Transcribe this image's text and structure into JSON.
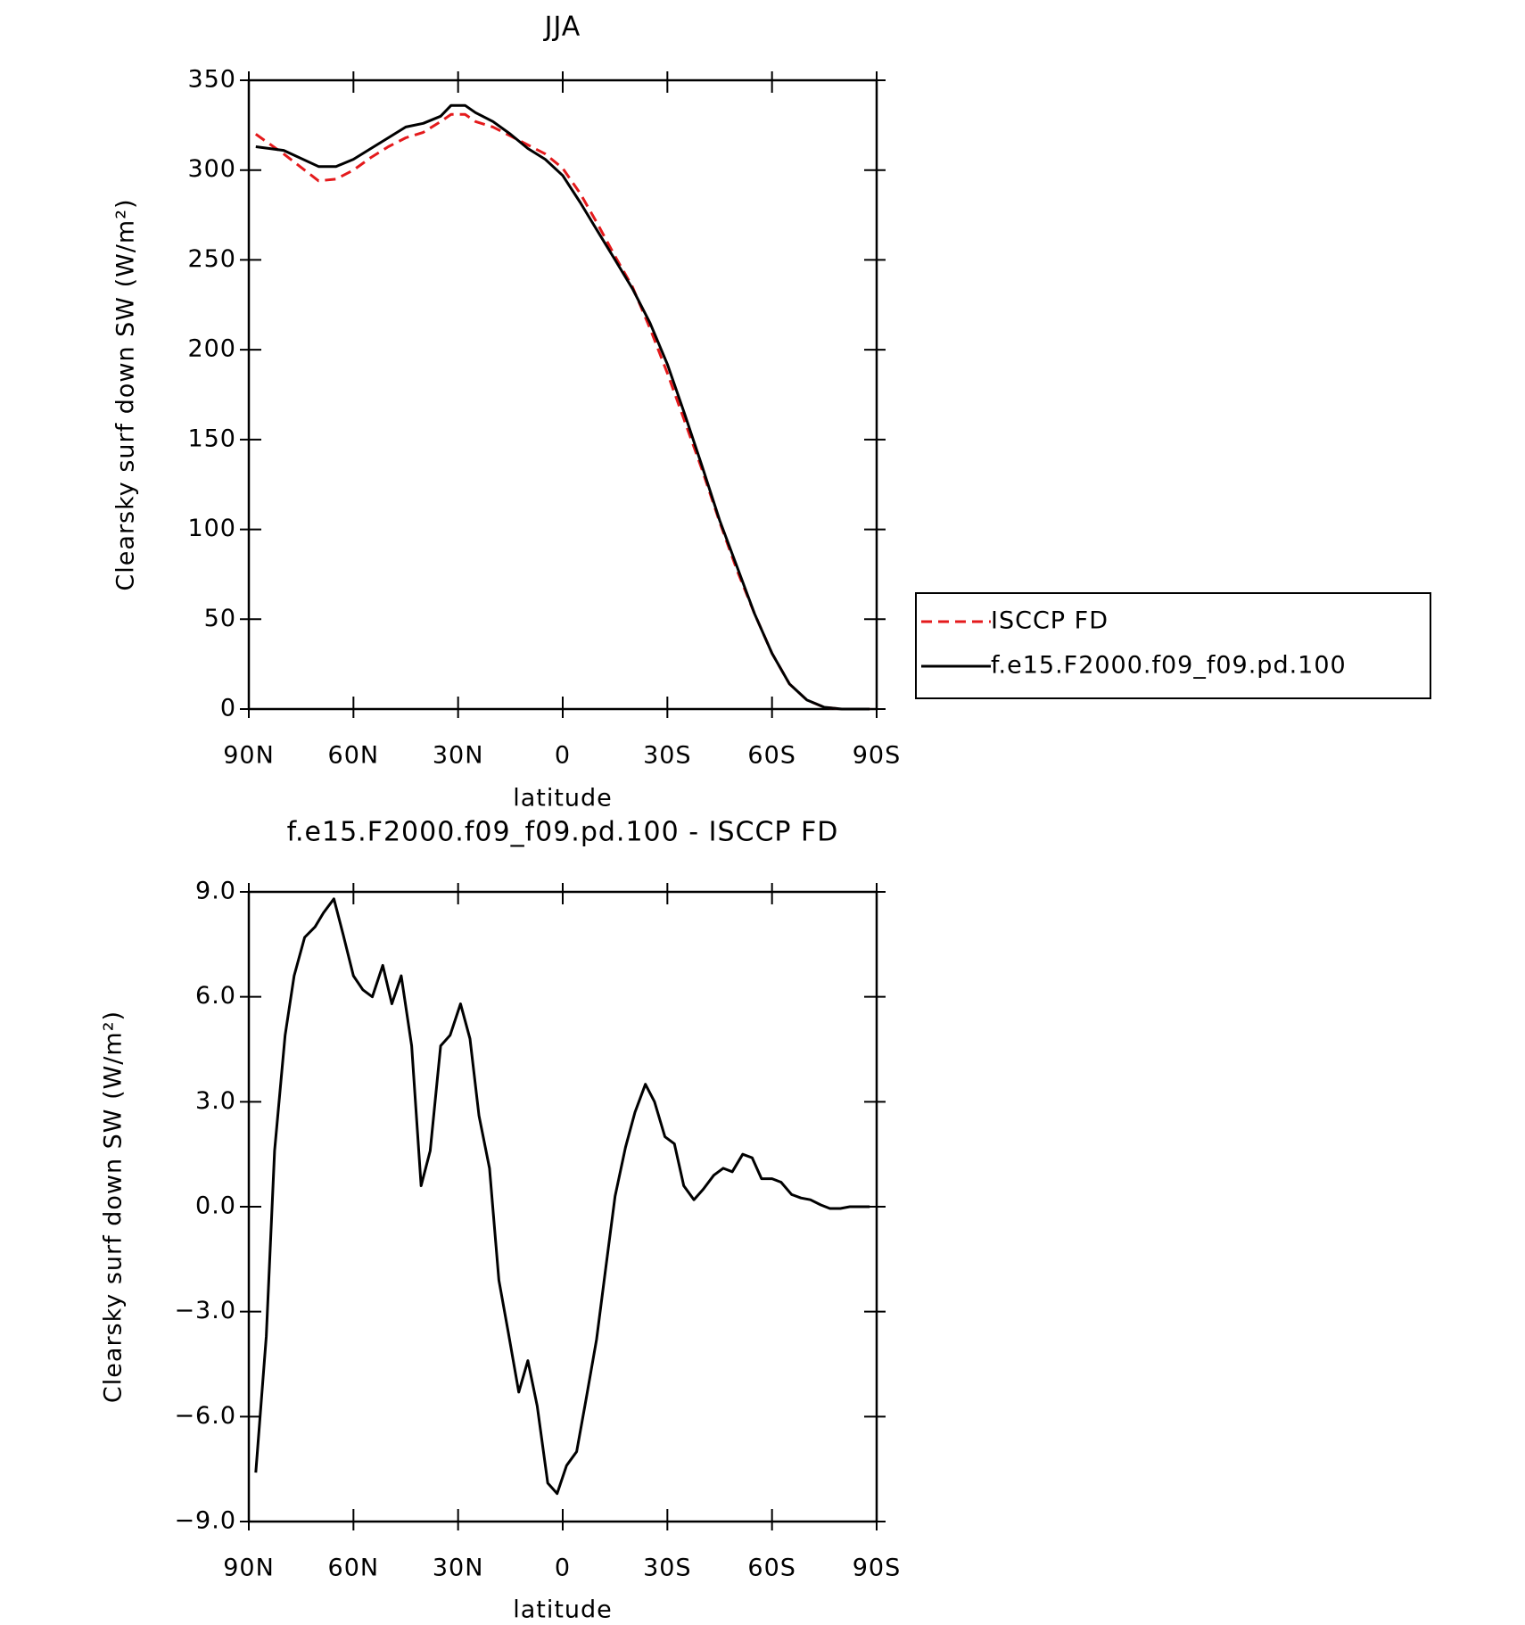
{
  "chart_data": [
    {
      "type": "line",
      "title": "JJA",
      "xlabel": "latitude",
      "ylabel": "Clearsky surf down SW (W/m²)",
      "x": [
        88,
        80,
        70,
        65,
        60,
        55,
        50,
        45,
        40,
        35,
        32,
        28,
        25,
        20,
        15,
        10,
        5,
        0,
        -5,
        -10,
        -15,
        -20,
        -25,
        -30,
        -35,
        -40,
        -45,
        -50,
        -55,
        -60,
        -65,
        -70,
        -75,
        -80,
        -88
      ],
      "series": [
        {
          "name": "ISCCP FD",
          "color": "#e41a1c",
          "linestyle": "dashed",
          "values": [
            320,
            309,
            294,
            295,
            300,
            307,
            313,
            318,
            321,
            327,
            331,
            331,
            327,
            324,
            319,
            314,
            309,
            301,
            287,
            270,
            252,
            235,
            212,
            187,
            160,
            133,
            104,
            77,
            53,
            31,
            14,
            5,
            1,
            0,
            0
          ]
        },
        {
          "name": "f.e15.F2000.f09_f09.pd.100",
          "color": "#000000",
          "linestyle": "solid",
          "values": [
            313,
            311,
            302,
            302,
            306,
            312,
            318,
            324,
            326,
            330,
            336,
            336,
            332,
            327,
            320,
            312,
            306,
            297,
            282,
            266,
            250,
            234,
            215,
            192,
            164,
            135,
            105,
            79,
            53,
            31,
            14,
            5,
            1,
            0,
            0
          ]
        }
      ],
      "xlim": [
        90,
        -90
      ],
      "xticks": [
        {
          "value": 90,
          "label": "90N"
        },
        {
          "value": 60,
          "label": "60N"
        },
        {
          "value": 30,
          "label": "30N"
        },
        0,
        {
          "value": -30,
          "label": "30S"
        },
        {
          "value": -60,
          "label": "60S"
        },
        {
          "value": -90,
          "label": "90S"
        }
      ],
      "ylim": [
        0,
        350
      ],
      "yticks": [
        0,
        50,
        100,
        150,
        200,
        250,
        300,
        350
      ],
      "legend": "outside-right"
    },
    {
      "type": "line",
      "title": "f.e15.F2000.f09_f09.pd.100 - ISCCP FD",
      "xlabel": "latitude",
      "ylabel": "Clearsky surf down SW (W/m²)",
      "x": [
        88,
        85,
        82.6,
        79.6,
        77,
        74,
        71,
        68.6,
        65.6,
        63,
        60,
        57.3,
        54.6,
        51.6,
        49,
        46.3,
        43.3,
        40.6,
        38,
        35,
        32.3,
        29.3,
        26.6,
        24,
        21,
        18.3,
        15.6,
        12.6,
        10,
        7.3,
        4.3,
        1.6,
        -1.1,
        -4,
        -6.7,
        -9.7,
        -12.4,
        -15,
        -18,
        -20.7,
        -23.7,
        -26.3,
        -29.3,
        -32,
        -34.7,
        -37.6,
        -40.3,
        -43.3,
        -46,
        -48.6,
        -51.6,
        -54.3,
        -57,
        -60,
        -62.6,
        -65.6,
        -68.3,
        -71,
        -74,
        -76.6,
        -79.6,
        -82.3,
        -85,
        -88
      ],
      "series": [
        {
          "name": "f.e15.F2000.f09_f09.pd.100 - ISCCP FD",
          "color": "#000000",
          "linestyle": "solid",
          "values": [
            -7.6,
            -3.7,
            1.6,
            4.9,
            6.6,
            7.7,
            8.0,
            8.4,
            8.8,
            7.8,
            6.6,
            6.2,
            6.0,
            6.9,
            5.8,
            6.6,
            4.6,
            0.6,
            1.6,
            4.6,
            4.9,
            5.8,
            4.8,
            2.6,
            1.1,
            -2.1,
            -3.6,
            -5.3,
            -4.4,
            -5.7,
            -7.9,
            -8.2,
            -7.4,
            -7.0,
            -5.5,
            -3.8,
            -1.7,
            0.3,
            1.7,
            2.7,
            3.5,
            3.0,
            2.0,
            1.8,
            0.6,
            0.2,
            0.5,
            0.9,
            1.1,
            1.0,
            1.5,
            1.4,
            0.8,
            0.8,
            0.7,
            0.35,
            0.25,
            0.2,
            0.05,
            -0.05,
            -0.05,
            0,
            0,
            0
          ]
        }
      ],
      "xlim": [
        90,
        -90
      ],
      "xticks": [
        {
          "value": 90,
          "label": "90N"
        },
        {
          "value": 60,
          "label": "60N"
        },
        {
          "value": 30,
          "label": "30N"
        },
        0,
        {
          "value": -30,
          "label": "30S"
        },
        {
          "value": -60,
          "label": "60S"
        },
        {
          "value": -90,
          "label": "90S"
        }
      ],
      "ylim": [
        -9,
        9
      ],
      "yticks": [
        {
          "value": -9,
          "label": "−9.0"
        },
        {
          "value": -6,
          "label": "−6.0"
        },
        {
          "value": -3,
          "label": "−3.0"
        },
        {
          "value": 0,
          "label": "0.0"
        },
        {
          "value": 3,
          "label": "3.0"
        },
        {
          "value": 6,
          "label": "6.0"
        },
        {
          "value": 9,
          "label": "9.0"
        }
      ]
    }
  ]
}
